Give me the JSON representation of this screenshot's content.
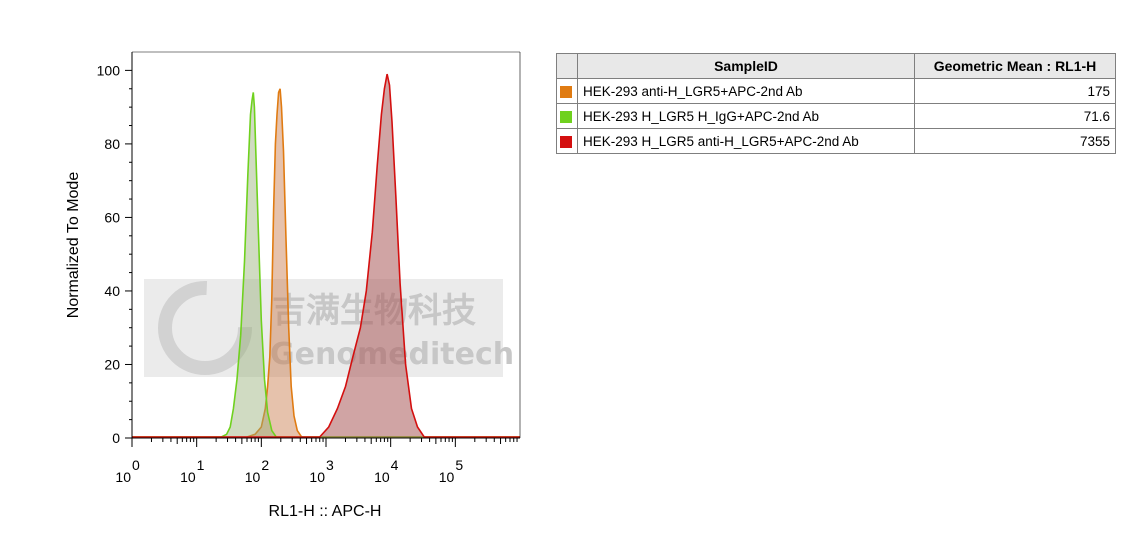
{
  "chart_data": {
    "type": "area",
    "subtype": "flow-cytometry-histogram",
    "xlabel": "RL1-H :: APC-H",
    "ylabel": "Normalized To Mode",
    "x_scale": "log",
    "x_range": [
      1,
      1000000
    ],
    "ylim": [
      0,
      105
    ],
    "y_ticks": [
      "0",
      "20",
      "40",
      "60",
      "80",
      "100"
    ],
    "x_ticks": [
      {
        "base": "10",
        "exp": "0",
        "value": 1
      },
      {
        "base": "10",
        "exp": "1",
        "value": 10
      },
      {
        "base": "10",
        "exp": "2",
        "value": 100
      },
      {
        "base": "10",
        "exp": "3",
        "value": 1000
      },
      {
        "base": "10",
        "exp": "4",
        "value": 10000
      },
      {
        "base": "10",
        "exp": "5",
        "value": 100000
      }
    ],
    "grid": false,
    "series": [
      {
        "name": "HEK-293 anti-H_LGR5+APC-2nd Ab",
        "color": "#e07b12",
        "fill": "rgba(200,120,70,0.45)",
        "points": [
          [
            60,
            0
          ],
          [
            80,
            1
          ],
          [
            100,
            3
          ],
          [
            115,
            8
          ],
          [
            125,
            14
          ],
          [
            135,
            22
          ],
          [
            145,
            38
          ],
          [
            155,
            62
          ],
          [
            165,
            80
          ],
          [
            175,
            88
          ],
          [
            185,
            94
          ],
          [
            195,
            95
          ],
          [
            205,
            90
          ],
          [
            220,
            78
          ],
          [
            240,
            55
          ],
          [
            265,
            30
          ],
          [
            290,
            14
          ],
          [
            320,
            6
          ],
          [
            360,
            2
          ],
          [
            420,
            0
          ]
        ]
      },
      {
        "name": "HEK-293 H_LGR5 H_IgG+APC-2nd Ab",
        "color": "#6fd11e",
        "fill": "rgba(150,175,120,0.45)",
        "points": [
          [
            24,
            0
          ],
          [
            29,
            1
          ],
          [
            33,
            3
          ],
          [
            37,
            8
          ],
          [
            42,
            16
          ],
          [
            48,
            28
          ],
          [
            55,
            48
          ],
          [
            62,
            72
          ],
          [
            68,
            88
          ],
          [
            72,
            92
          ],
          [
            75,
            94
          ],
          [
            78,
            90
          ],
          [
            82,
            78
          ],
          [
            90,
            56
          ],
          [
            100,
            32
          ],
          [
            112,
            16
          ],
          [
            125,
            7
          ],
          [
            145,
            2
          ],
          [
            170,
            0
          ]
        ]
      },
      {
        "name": "HEK-293 H_LGR5 anti-H_LGR5+APC-2nd Ab",
        "color": "#d40f0f",
        "fill": "rgba(170,90,90,0.55)",
        "points": [
          [
            800,
            0
          ],
          [
            1100,
            3
          ],
          [
            1500,
            8
          ],
          [
            2000,
            14
          ],
          [
            2600,
            22
          ],
          [
            3400,
            30
          ],
          [
            4200,
            40
          ],
          [
            5200,
            56
          ],
          [
            6200,
            74
          ],
          [
            7200,
            88
          ],
          [
            8000,
            95
          ],
          [
            8800,
            99
          ],
          [
            9600,
            96
          ],
          [
            10500,
            86
          ],
          [
            12000,
            66
          ],
          [
            14000,
            42
          ],
          [
            17000,
            20
          ],
          [
            21000,
            8
          ],
          [
            26000,
            3
          ],
          [
            33000,
            0
          ]
        ]
      }
    ],
    "legend_placement": "right-table"
  },
  "legend_table": {
    "headers": [
      "SampleID",
      "Geometric Mean : RL1-H"
    ],
    "rows": [
      {
        "sample": "HEK-293 anti-H_LGR5+APC-2nd Ab",
        "mean": "175",
        "color": "#e07b12"
      },
      {
        "sample": "HEK-293 H_LGR5 H_IgG+APC-2nd Ab",
        "mean": "71.6",
        "color": "#6fd11e"
      },
      {
        "sample": "HEK-293 H_LGR5 anti-H_LGR5+APC-2nd Ab",
        "mean": "7355",
        "color": "#d40f0f"
      }
    ]
  },
  "watermark": {
    "chinese": "吉满生物科技",
    "english": "Genomeditech"
  }
}
